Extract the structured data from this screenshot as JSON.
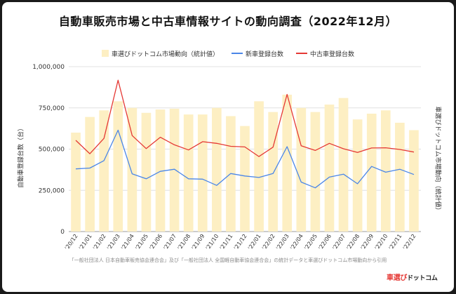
{
  "title": "自動車販売市場と中古車情報サイトの動向調査（2022年12月）",
  "legend": {
    "bar": "車選びドットコム市場動向（統計値）",
    "new": "新車登録台数",
    "used": "中古車登録台数"
  },
  "y_axis_label": "自動車登録台数（台）",
  "y2_axis_label": "車選びドットコム市場動向（統計値）",
  "footnote": "「一般社団法人 日本自動車販売協会連合会」及び「一般社団法人 全国軽自動車協会連合会」の統計データと車選びドットコム市場動向から引用",
  "logo": {
    "main": "車選び",
    "sub": "ドットコム"
  },
  "colors": {
    "bar": "#fdefc3",
    "new": "#4a86e8",
    "used": "#e53935",
    "grid": "#e0e0e0"
  },
  "chart_data": {
    "type": "bar",
    "categories": [
      "'20/12",
      "'21/01",
      "'21/02",
      "'21/03",
      "'21/04",
      "'21/05",
      "'21/06",
      "'21/07",
      "'21/08",
      "'21/09",
      "'21/10",
      "'21/11",
      "'21/12",
      "'22/01",
      "'22/02",
      "'22/03",
      "'22/04",
      "'22/05",
      "'22/06",
      "'22/07",
      "'22/08",
      "'22/09",
      "'22/10",
      "'22/11",
      "'22/12"
    ],
    "ylim": [
      0,
      1000000
    ],
    "yticks": [
      0,
      250000,
      500000,
      750000,
      1000000
    ],
    "ytick_labels": [
      "0",
      "250,000",
      "500,000",
      "750,000",
      "1,000,000"
    ],
    "series": [
      {
        "name": "車選びドットコム市場動向（統計値）",
        "type": "bar",
        "values": [
          600000,
          695000,
          735000,
          790000,
          750000,
          720000,
          740000,
          745000,
          710000,
          710000,
          750000,
          700000,
          640000,
          790000,
          725000,
          830000,
          750000,
          725000,
          770000,
          810000,
          680000,
          715000,
          735000,
          660000,
          615000
        ]
      },
      {
        "name": "新車登録台数",
        "type": "line",
        "values": [
          380000,
          385000,
          430000,
          615000,
          350000,
          320000,
          365000,
          378000,
          320000,
          318000,
          280000,
          352000,
          337000,
          328000,
          352000,
          515000,
          300000,
          265000,
          330000,
          348000,
          290000,
          395000,
          360000,
          378000,
          346000
        ]
      },
      {
        "name": "中古車登録台数",
        "type": "line",
        "values": [
          553000,
          472000,
          565000,
          918000,
          582000,
          503000,
          572000,
          526000,
          495000,
          545000,
          535000,
          517000,
          513000,
          455000,
          512000,
          832000,
          520000,
          492000,
          535000,
          502000,
          480000,
          507000,
          508000,
          498000,
          482000
        ]
      }
    ]
  }
}
